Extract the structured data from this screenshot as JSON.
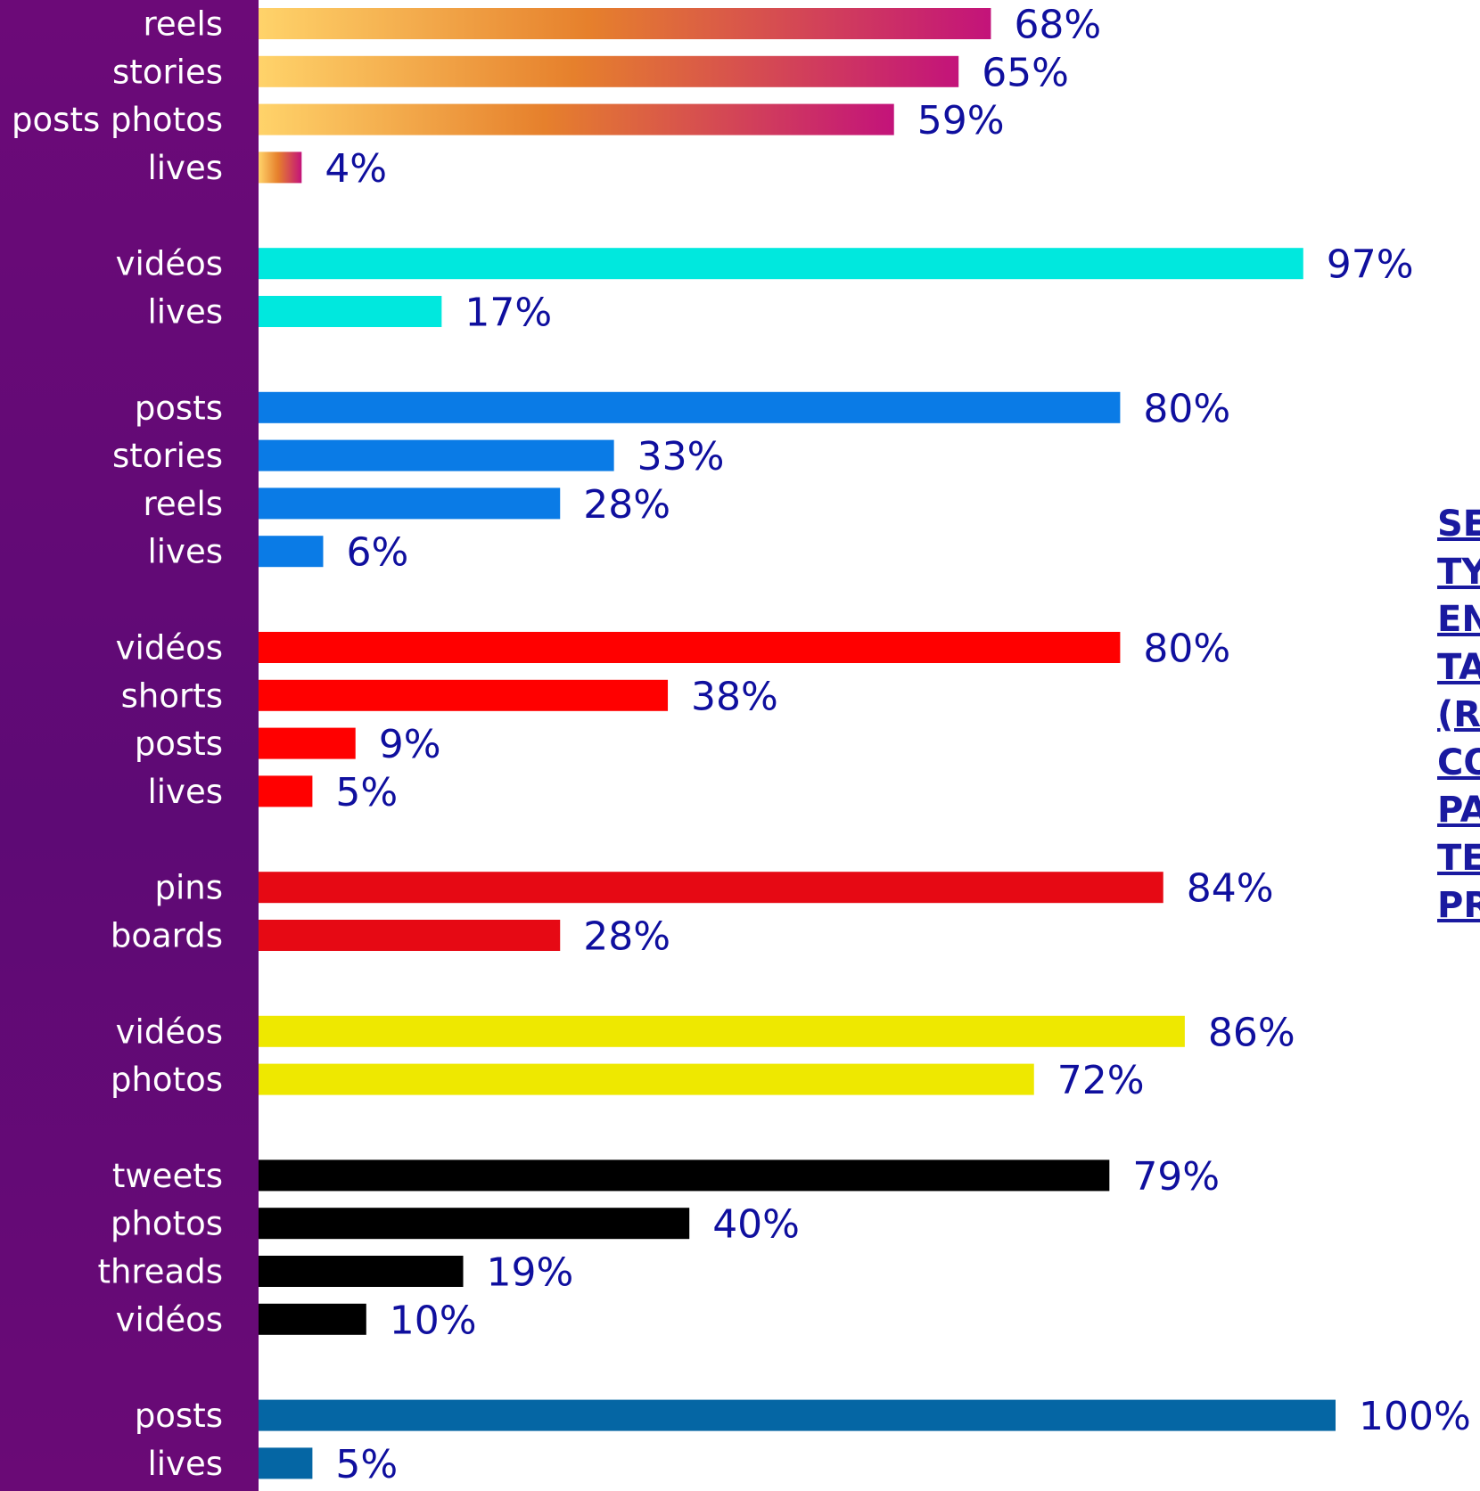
{
  "chart_data": {
    "type": "bar",
    "orientation": "horizontal",
    "value_suffix": "%",
    "xlim": [
      0,
      100
    ],
    "grid": false,
    "legend": "none",
    "groups": [
      {
        "color": "#e98a2e",
        "gradient": [
          "#ffd36a",
          "#e6802c",
          "#c3137a"
        ],
        "bars": [
          {
            "label": "reels",
            "value": 68
          },
          {
            "label": "stories",
            "value": 65
          },
          {
            "label": "posts photos",
            "value": 59
          },
          {
            "label": "lives",
            "value": 4
          }
        ]
      },
      {
        "color": "#00e8de",
        "bars": [
          {
            "label": "vidéos",
            "value": 97
          },
          {
            "label": "lives",
            "value": 17
          }
        ]
      },
      {
        "color": "#0a7be6",
        "bars": [
          {
            "label": "posts",
            "value": 80
          },
          {
            "label": "stories",
            "value": 33
          },
          {
            "label": "reels",
            "value": 28
          },
          {
            "label": "lives",
            "value": 6
          }
        ]
      },
      {
        "color": "#ff0000",
        "bars": [
          {
            "label": "vidéos",
            "value": 80
          },
          {
            "label": "shorts",
            "value": 38
          },
          {
            "label": "posts",
            "value": 9
          },
          {
            "label": "lives",
            "value": 5
          }
        ]
      },
      {
        "color": "#e60914",
        "bars": [
          {
            "label": "pins",
            "value": 84
          },
          {
            "label": "boards",
            "value": 28
          }
        ]
      },
      {
        "color": "#eee800",
        "bars": [
          {
            "label": "vidéos",
            "value": 86
          },
          {
            "label": "photos",
            "value": 72
          }
        ]
      },
      {
        "color": "#000000",
        "bars": [
          {
            "label": "tweets",
            "value": 79
          },
          {
            "label": "photos",
            "value": 40
          },
          {
            "label": "threads",
            "value": 19
          },
          {
            "label": "vidéos",
            "value": 10
          }
        ]
      },
      {
        "color": "#0566a4",
        "bars": [
          {
            "label": "posts",
            "value": 100
          },
          {
            "label": "lives",
            "value": 5
          }
        ]
      }
    ]
  },
  "side_title_fragments": [
    "SE",
    "TY",
    "EN",
    "TA",
    "(R",
    "CO",
    "PA",
    "TE",
    "PR"
  ]
}
